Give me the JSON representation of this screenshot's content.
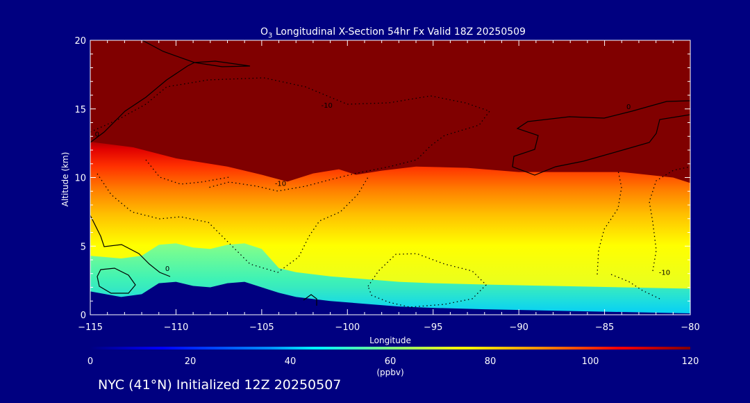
{
  "chart_data": {
    "type": "heatmap",
    "title_prefix": "O",
    "title_sub": "3",
    "title_rest": " Longitudinal X-Section 54hr  Fx Valid 18Z 20250509",
    "xlabel": "Longitude",
    "ylabel": "Altitude (km)",
    "xlim": [
      -115,
      -80
    ],
    "ylim": [
      0,
      20
    ],
    "xticks": [
      -115,
      -110,
      -105,
      -100,
      -95,
      -90,
      -85,
      -80
    ],
    "xtick_labels": [
      "−115",
      "−110",
      "−105",
      "−100",
      "−95",
      "−90",
      "−85",
      "−80"
    ],
    "yticks": [
      0,
      5,
      10,
      15,
      20
    ],
    "ytick_labels": [
      "0",
      "5",
      "10",
      "15",
      "20"
    ],
    "colorbar": {
      "min": 0,
      "max": 120,
      "ticks": [
        0,
        20,
        40,
        60,
        80,
        100,
        120
      ],
      "tick_labels": [
        "0",
        "20",
        "40",
        "60",
        "80",
        "100",
        "120"
      ],
      "unit_label": "(ppbv)",
      "colors": [
        "#00007f",
        "#0000ff",
        "#007fff",
        "#00ffff",
        "#7fff7f",
        "#ffff00",
        "#ff7f00",
        "#ff0000",
        "#7f0000"
      ]
    },
    "contour_labels": [
      {
        "text": "0",
        "x": -114.6,
        "y": 13.0
      },
      {
        "text": "-10",
        "x": -101.2,
        "y": 15.1
      },
      {
        "text": "0",
        "x": -83.6,
        "y": 15.0
      },
      {
        "text": "-10",
        "x": -103.9,
        "y": 9.4
      },
      {
        "text": "0",
        "x": -110.5,
        "y": 3.2
      },
      {
        "text": "-10",
        "x": -81.5,
        "y": 2.9
      }
    ],
    "surface_top_km": [
      [
        -115,
        1.7
      ],
      [
        -113.2,
        1.3
      ],
      [
        -112,
        1.5
      ],
      [
        -111,
        2.3
      ],
      [
        -110,
        2.4
      ],
      [
        -109,
        2.1
      ],
      [
        -108,
        2.0
      ],
      [
        -107,
        2.3
      ],
      [
        -106,
        2.4
      ],
      [
        -105,
        2.0
      ],
      [
        -104,
        1.6
      ],
      [
        -103,
        1.3
      ],
      [
        -101,
        1.0
      ],
      [
        -99,
        0.8
      ],
      [
        -97,
        0.6
      ],
      [
        -95,
        0.5
      ],
      [
        -92,
        0.4
      ],
      [
        -88,
        0.3
      ],
      [
        -84,
        0.2
      ],
      [
        -80,
        0.1
      ]
    ],
    "tropopause_top_km": [
      [
        -115,
        12.6
      ],
      [
        -112.5,
        12.2
      ],
      [
        -110,
        11.4
      ],
      [
        -107,
        10.8
      ],
      [
        -105,
        10.2
      ],
      [
        -103.5,
        9.7
      ],
      [
        -102,
        10.3
      ],
      [
        -100.5,
        10.6
      ],
      [
        -99.5,
        10.2
      ],
      [
        -98,
        10.5
      ],
      [
        -96,
        10.8
      ],
      [
        -93,
        10.7
      ],
      [
        -90,
        10.4
      ],
      [
        -87,
        10.4
      ],
      [
        -84,
        10.4
      ],
      [
        -81,
        10.0
      ],
      [
        -80,
        9.6
      ]
    ]
  },
  "footer": "NYC (41°N) Initialized 12Z 20250507"
}
